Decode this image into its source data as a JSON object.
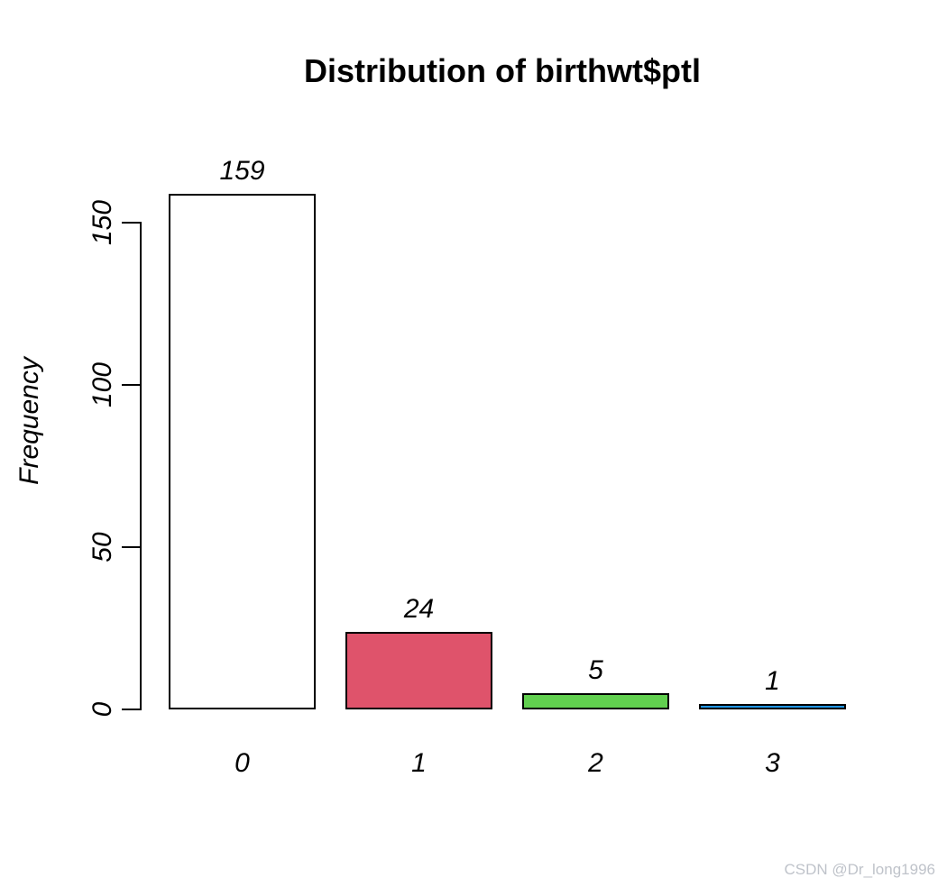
{
  "watermark": "CSDN @Dr_long1996",
  "colors": {
    "background": "#ffffff",
    "axis": "#000000",
    "text": "#000000",
    "watermark_text": "#bfc3ca",
    "bar_border": "#000000"
  },
  "chart_data": {
    "type": "bar",
    "title": "Distribution of birthwt$ptl",
    "xlabel": "",
    "ylabel": "Frequency",
    "categories": [
      "0",
      "1",
      "2",
      "3"
    ],
    "values": [
      159,
      24,
      5,
      1
    ],
    "bar_value_labels": [
      "159",
      "24",
      "5",
      "1"
    ],
    "bar_colors": [
      "#FFFFFF",
      "#DF536B",
      "#61D04F",
      "#2297E6"
    ],
    "yticks": [
      0,
      50,
      100,
      150
    ],
    "ytick_labels": [
      "0",
      "50",
      "100",
      "150"
    ],
    "ylim": [
      0,
      165
    ],
    "grid": false,
    "legend_position": "none",
    "bar_border_color": "#000000",
    "value_label_style": "italic",
    "axis_label_style": "italic"
  }
}
